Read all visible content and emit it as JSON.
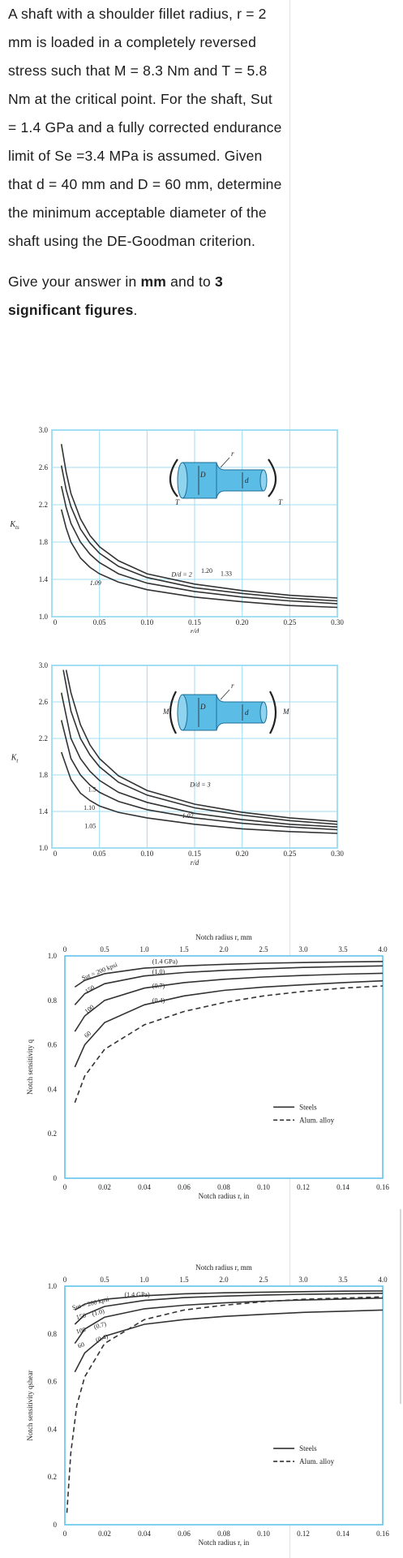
{
  "question": {
    "paragraph1": "A shaft with a shoulder fillet radius, r = 2 mm is loaded in a completely reversed stress such that M = 8.3 Nm  and T = 5.8 Nm at the critical point. For the shaft, Sut = 1.4 GPa and a fully corrected endurance limit of Se =3.4 MPa is assumed. Given that d = 40 mm and D = 60 mm, determine the minimum acceptable diameter of the shaft using the DE-Goodman criterion.",
    "p2_prefix": "Give your answer in ",
    "p2_unit": "mm",
    "p2_mid": " and to ",
    "p2_bold": "3 significant figures",
    "p2_end": "."
  },
  "chart_data": [
    {
      "type": "line",
      "ylabel": "Kts",
      "xlim": [
        0,
        0.3
      ],
      "ylim": [
        1.0,
        3.0
      ],
      "x_ticks": [
        "0",
        "0.05",
        "0.10",
        "0.15",
        "0.20",
        "0.25",
        "0.30"
      ],
      "y_ticks": [
        "1.0",
        "1.4",
        "1.8",
        "2.2",
        "2.6",
        "3.0"
      ],
      "xlabel": "r/d",
      "load_labels": [
        "T",
        "T"
      ],
      "dim_labels": [
        "D",
        "d",
        "r"
      ],
      "series": [
        {
          "name": "D/d = 2",
          "x": [
            0.01,
            0.015,
            0.02,
            0.03,
            0.04,
            0.05,
            0.07,
            0.1,
            0.15,
            0.2,
            0.25,
            0.3
          ],
          "y": [
            2.85,
            2.55,
            2.32,
            2.05,
            1.87,
            1.75,
            1.6,
            1.46,
            1.35,
            1.28,
            1.23,
            1.2
          ]
        },
        {
          "name": "1.33",
          "x": [
            0.01,
            0.015,
            0.02,
            0.03,
            0.04,
            0.05,
            0.07,
            0.1,
            0.15,
            0.2,
            0.25,
            0.3
          ],
          "y": [
            2.62,
            2.36,
            2.18,
            1.94,
            1.79,
            1.68,
            1.54,
            1.42,
            1.31,
            1.25,
            1.2,
            1.17
          ]
        },
        {
          "name": "1.20",
          "x": [
            0.01,
            0.015,
            0.02,
            0.03,
            0.04,
            0.05,
            0.07,
            0.1,
            0.15,
            0.2,
            0.25,
            0.3
          ],
          "y": [
            2.4,
            2.17,
            2.0,
            1.8,
            1.67,
            1.58,
            1.46,
            1.36,
            1.27,
            1.21,
            1.17,
            1.14
          ]
        },
        {
          "name": "1.09",
          "x": [
            0.01,
            0.015,
            0.02,
            0.03,
            0.04,
            0.05,
            0.07,
            0.1,
            0.15,
            0.2,
            0.25,
            0.3
          ],
          "y": [
            2.15,
            1.95,
            1.8,
            1.63,
            1.53,
            1.46,
            1.37,
            1.29,
            1.21,
            1.16,
            1.12,
            1.1
          ]
        }
      ],
      "curve_labels": [
        "D/d = 2",
        "1.20",
        "1.33",
        "1.09"
      ]
    },
    {
      "type": "line",
      "ylabel": "Kt",
      "xlim": [
        0,
        0.3
      ],
      "ylim": [
        1.0,
        3.0
      ],
      "x_ticks": [
        "0",
        "0.05",
        "0.10",
        "0.15",
        "0.20",
        "0.25",
        "0.30"
      ],
      "y_ticks": [
        "1.0",
        "1.4",
        "1.8",
        "2.2",
        "2.6",
        "3.0"
      ],
      "xlabel": "r/d",
      "load_labels": [
        "M",
        "M"
      ],
      "dim_labels": [
        "D",
        "d",
        "r"
      ],
      "series": [
        {
          "name": "D/d = 3",
          "x": [
            0.015,
            0.02,
            0.03,
            0.04,
            0.05,
            0.07,
            0.1,
            0.15,
            0.2,
            0.25,
            0.3
          ],
          "y": [
            2.95,
            2.7,
            2.35,
            2.13,
            1.98,
            1.79,
            1.63,
            1.48,
            1.39,
            1.33,
            1.29
          ]
        },
        {
          "name": "1.5",
          "x": [
            0.012,
            0.02,
            0.03,
            0.04,
            0.05,
            0.07,
            0.1,
            0.15,
            0.2,
            0.25,
            0.3
          ],
          "y": [
            2.95,
            2.5,
            2.2,
            2.02,
            1.89,
            1.72,
            1.58,
            1.44,
            1.36,
            1.3,
            1.26
          ]
        },
        {
          "name": "1.10",
          "x": [
            0.01,
            0.02,
            0.03,
            0.04,
            0.05,
            0.07,
            0.1,
            0.15,
            0.2,
            0.25,
            0.3
          ],
          "y": [
            2.7,
            2.2,
            1.98,
            1.84,
            1.74,
            1.61,
            1.5,
            1.38,
            1.31,
            1.26,
            1.23
          ]
        },
        {
          "name": "1.05",
          "x": [
            0.01,
            0.02,
            0.03,
            0.04,
            0.05,
            0.07,
            0.1,
            0.15,
            0.2,
            0.25,
            0.3
          ],
          "y": [
            2.4,
            1.98,
            1.8,
            1.69,
            1.61,
            1.51,
            1.42,
            1.33,
            1.27,
            1.23,
            1.2
          ]
        },
        {
          "name": "1.02",
          "x": [
            0.01,
            0.02,
            0.03,
            0.04,
            0.05,
            0.07,
            0.1,
            0.15,
            0.2,
            0.25,
            0.3
          ],
          "y": [
            2.05,
            1.75,
            1.6,
            1.52,
            1.46,
            1.39,
            1.33,
            1.26,
            1.21,
            1.18,
            1.16
          ]
        }
      ],
      "curve_labels": [
        "D/d = 3",
        "1.5",
        "1.10",
        "1.05",
        "1.02"
      ]
    },
    {
      "type": "line",
      "title": "Notch radius r, mm",
      "xlabel": "Notch radius r, in",
      "ylabel": "Notch sensitivity q",
      "xlim": [
        0,
        0.16
      ],
      "ylim": [
        0,
        1.0
      ],
      "x_ticks": [
        "0",
        "0.02",
        "0.04",
        "0.06",
        "0.08",
        "0.10",
        "0.12",
        "0.14",
        "0.16"
      ],
      "x_top_ticks": [
        "0",
        "0.5",
        "1.0",
        "1.5",
        "2.0",
        "2.5",
        "3.0",
        "3.5",
        "4.0"
      ],
      "y_ticks": [
        "0",
        "0.2",
        "0.4",
        "0.6",
        "0.8",
        "1.0"
      ],
      "legend": [
        "Steels",
        "Alum. alloy"
      ],
      "series": [
        {
          "name": "Sut = 200 kpsi (1.4 GPa)",
          "x": [
            0.005,
            0.01,
            0.02,
            0.04,
            0.06,
            0.08,
            0.1,
            0.12,
            0.14,
            0.16
          ],
          "y": [
            0.86,
            0.89,
            0.92,
            0.945,
            0.955,
            0.962,
            0.967,
            0.97,
            0.973,
            0.975
          ]
        },
        {
          "name": "150 (1.0)",
          "x": [
            0.005,
            0.01,
            0.02,
            0.04,
            0.06,
            0.08,
            0.1,
            0.12,
            0.14,
            0.16
          ],
          "y": [
            0.78,
            0.83,
            0.875,
            0.91,
            0.925,
            0.935,
            0.942,
            0.948,
            0.952,
            0.955
          ]
        },
        {
          "name": "100 (0.7)",
          "x": [
            0.005,
            0.01,
            0.02,
            0.04,
            0.06,
            0.08,
            0.1,
            0.12,
            0.14,
            0.16
          ],
          "y": [
            0.66,
            0.73,
            0.8,
            0.855,
            0.88,
            0.895,
            0.905,
            0.912,
            0.918,
            0.922
          ]
        },
        {
          "name": "60 (0.4)",
          "x": [
            0.005,
            0.01,
            0.02,
            0.04,
            0.06,
            0.08,
            0.1,
            0.12,
            0.14,
            0.16
          ],
          "y": [
            0.5,
            0.6,
            0.7,
            0.78,
            0.82,
            0.845,
            0.86,
            0.87,
            0.88,
            0.888
          ]
        },
        {
          "name": "Alum. alloy",
          "dashed": true,
          "x": [
            0.005,
            0.01,
            0.02,
            0.04,
            0.06,
            0.08,
            0.1,
            0.12,
            0.14,
            0.16
          ],
          "y": [
            0.34,
            0.46,
            0.58,
            0.69,
            0.75,
            0.79,
            0.82,
            0.84,
            0.855,
            0.865
          ]
        }
      ],
      "curve_labels": [
        "Sut = 200 kpsi",
        "150",
        "100",
        "60",
        "(1.4 GPa)",
        "(1.0)",
        "(0.7)",
        "(0.4)"
      ]
    },
    {
      "type": "line",
      "title": "Notch radius r, mm",
      "xlabel": "Notch radius r, in",
      "ylabel": "Notch sensitivity qshear",
      "xlim": [
        0,
        0.16
      ],
      "ylim": [
        0,
        1.0
      ],
      "x_ticks": [
        "0",
        "0.02",
        "0.04",
        "0.06",
        "0.08",
        "0.10",
        "0.12",
        "0.14",
        "0.16"
      ],
      "x_top_ticks": [
        "0",
        "0.5",
        "1.0",
        "1.5",
        "2.0",
        "2.5",
        "3.0",
        "3.5",
        "4.0"
      ],
      "y_ticks": [
        "0",
        "0.2",
        "0.4",
        "0.6",
        "0.8",
        "1.0"
      ],
      "legend": [
        "Steels",
        "Alum. alloy"
      ],
      "series": [
        {
          "name": "Sut = 200 kpsi (1.4 GPa)",
          "x": [
            0.005,
            0.01,
            0.02,
            0.04,
            0.06,
            0.08,
            0.1,
            0.12,
            0.14,
            0.16
          ],
          "y": [
            0.9,
            0.925,
            0.945,
            0.96,
            0.968,
            0.972,
            0.975,
            0.977,
            0.979,
            0.98
          ]
        },
        {
          "name": "150 (1.0)",
          "x": [
            0.005,
            0.01,
            0.02,
            0.04,
            0.06,
            0.08,
            0.1,
            0.12,
            0.14,
            0.16
          ],
          "y": [
            0.84,
            0.88,
            0.915,
            0.94,
            0.952,
            0.958,
            0.963,
            0.966,
            0.968,
            0.97
          ]
        },
        {
          "name": "100 (0.7)",
          "x": [
            0.005,
            0.01,
            0.02,
            0.04,
            0.06,
            0.08,
            0.1,
            0.12,
            0.14,
            0.16
          ],
          "y": [
            0.76,
            0.82,
            0.87,
            0.905,
            0.92,
            0.93,
            0.937,
            0.942,
            0.946,
            0.95
          ]
        },
        {
          "name": "60 (0.4)",
          "x": [
            0.005,
            0.01,
            0.02,
            0.04,
            0.06,
            0.08,
            0.1,
            0.12,
            0.14,
            0.16
          ],
          "y": [
            0.64,
            0.72,
            0.79,
            0.84,
            0.86,
            0.873,
            0.882,
            0.89,
            0.895,
            0.9
          ]
        },
        {
          "name": "Alum. alloy",
          "dashed": true,
          "x": [
            0.001,
            0.003,
            0.006,
            0.01,
            0.02,
            0.04,
            0.06,
            0.08,
            0.1,
            0.12,
            0.14,
            0.16
          ],
          "y": [
            0.05,
            0.3,
            0.5,
            0.62,
            0.76,
            0.86,
            0.9,
            0.92,
            0.935,
            0.945,
            0.95,
            0.955
          ]
        }
      ],
      "curve_labels": [
        "Sut = 200 kpsi",
        "(1.4 GPa)",
        "150",
        "(1.0)",
        "100",
        "(0.7)",
        "60",
        "(0.4)"
      ]
    }
  ]
}
